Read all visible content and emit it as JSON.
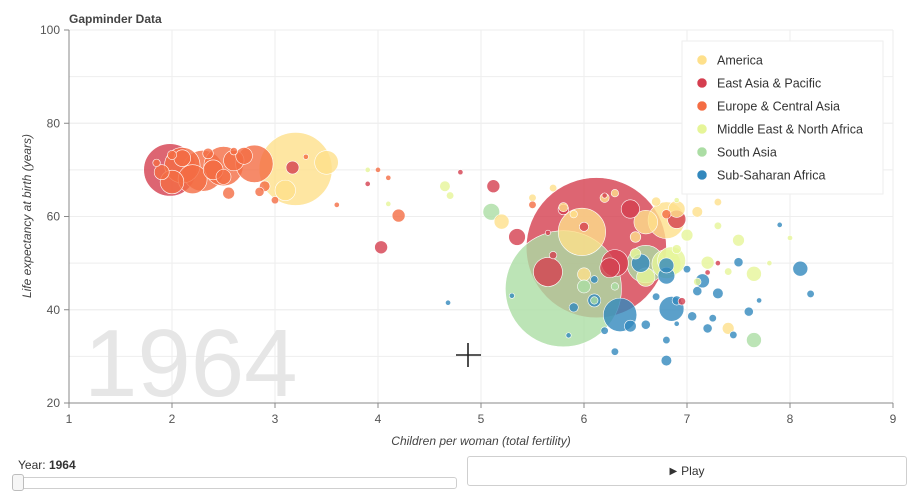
{
  "chart_data": {
    "type": "scatter",
    "title": "Gapminder Data",
    "year": "1964",
    "xlabel": "Children per woman (total fertility)",
    "ylabel": "Life expectancy at birth (years)",
    "xlim": [
      1,
      9
    ],
    "ylim": [
      20,
      100
    ],
    "x_ticks": [
      "1",
      "2",
      "3",
      "4",
      "5",
      "6",
      "7",
      "8",
      "9"
    ],
    "y_ticks": [
      "20",
      "40",
      "60",
      "80",
      "100"
    ],
    "legend_position": "top-right",
    "series": [
      {
        "name": "America",
        "color": "#fee08b",
        "points": [
          {
            "x": 3.2,
            "y": 70.2,
            "pop": 190
          },
          {
            "x": 5.98,
            "y": 56.7,
            "pop": 80
          },
          {
            "x": 6.8,
            "y": 59.2,
            "pop": 48
          },
          {
            "x": 6.6,
            "y": 58.8,
            "pop": 20
          },
          {
            "x": 3.5,
            "y": 71.6,
            "pop": 20
          },
          {
            "x": 3.1,
            "y": 65.6,
            "pop": 15
          },
          {
            "x": 6.9,
            "y": 61.6,
            "pop": 10
          },
          {
            "x": 5.2,
            "y": 58.9,
            "pop": 8
          },
          {
            "x": 6.0,
            "y": 47.6,
            "pop": 6
          },
          {
            "x": 7.4,
            "y": 36.0,
            "pop": 5
          },
          {
            "x": 6.5,
            "y": 55.6,
            "pop": 4
          },
          {
            "x": 7.1,
            "y": 61.0,
            "pop": 4
          },
          {
            "x": 6.2,
            "y": 64.0,
            "pop": 3
          },
          {
            "x": 5.8,
            "y": 62.0,
            "pop": 3
          },
          {
            "x": 6.7,
            "y": 63.2,
            "pop": 3
          },
          {
            "x": 5.7,
            "y": 66.1,
            "pop": 2
          },
          {
            "x": 6.3,
            "y": 65.0,
            "pop": 2
          },
          {
            "x": 7.3,
            "y": 63.1,
            "pop": 2
          },
          {
            "x": 5.5,
            "y": 64.0,
            "pop": 2
          },
          {
            "x": 5.9,
            "y": 60.5,
            "pop": 2
          }
        ]
      },
      {
        "name": "East Asia & Pacific",
        "color": "#d53e4f",
        "points": [
          {
            "x": 6.12,
            "y": 53.3,
            "pop": 700
          },
          {
            "x": 1.98,
            "y": 70.0,
            "pop": 98
          },
          {
            "x": 5.65,
            "y": 48.1,
            "pop": 30
          },
          {
            "x": 6.3,
            "y": 50.0,
            "pop": 26
          },
          {
            "x": 6.25,
            "y": 49.0,
            "pop": 14
          },
          {
            "x": 4.03,
            "y": 53.4,
            "pop": 6
          },
          {
            "x": 5.35,
            "y": 55.6,
            "pop": 10
          },
          {
            "x": 6.9,
            "y": 59.4,
            "pop": 12
          },
          {
            "x": 6.45,
            "y": 61.6,
            "pop": 12
          },
          {
            "x": 5.12,
            "y": 66.5,
            "pop": 6
          },
          {
            "x": 3.17,
            "y": 70.5,
            "pop": 6
          },
          {
            "x": 5.8,
            "y": 61.5,
            "pop": 4
          },
          {
            "x": 6.0,
            "y": 57.8,
            "pop": 3
          },
          {
            "x": 6.95,
            "y": 41.8,
            "pop": 2
          },
          {
            "x": 5.7,
            "y": 51.7,
            "pop": 2
          },
          {
            "x": 3.9,
            "y": 67.0,
            "pop": 1
          },
          {
            "x": 4.8,
            "y": 69.5,
            "pop": 1
          },
          {
            "x": 5.65,
            "y": 56.5,
            "pop": 1
          },
          {
            "x": 6.2,
            "y": 64.5,
            "pop": 1
          },
          {
            "x": 7.3,
            "y": 50.0,
            "pop": 1
          },
          {
            "x": 7.2,
            "y": 48.0,
            "pop": 1
          }
        ]
      },
      {
        "name": "Europe & Central Asia",
        "color": "#f46d43",
        "points": [
          {
            "x": 2.3,
            "y": 69.8,
            "pop": 60
          },
          {
            "x": 2.5,
            "y": 70.8,
            "pop": 55
          },
          {
            "x": 2.8,
            "y": 71.3,
            "pop": 50
          },
          {
            "x": 2.1,
            "y": 71.0,
            "pop": 45
          },
          {
            "x": 2.2,
            "y": 68.0,
            "pop": 30
          },
          {
            "x": 2.0,
            "y": 67.4,
            "pop": 20
          },
          {
            "x": 2.6,
            "y": 72.0,
            "pop": 15
          },
          {
            "x": 2.4,
            "y": 70.0,
            "pop": 14
          },
          {
            "x": 2.7,
            "y": 73.0,
            "pop": 10
          },
          {
            "x": 2.1,
            "y": 72.5,
            "pop": 10
          },
          {
            "x": 1.9,
            "y": 69.5,
            "pop": 8
          },
          {
            "x": 2.5,
            "y": 68.5,
            "pop": 8
          },
          {
            "x": 4.2,
            "y": 60.2,
            "pop": 6
          },
          {
            "x": 2.55,
            "y": 65.0,
            "pop": 5
          },
          {
            "x": 2.35,
            "y": 73.5,
            "pop": 4
          },
          {
            "x": 2.9,
            "y": 66.5,
            "pop": 4
          },
          {
            "x": 2.85,
            "y": 65.3,
            "pop": 3
          },
          {
            "x": 2.0,
            "y": 73.2,
            "pop": 3
          },
          {
            "x": 2.6,
            "y": 74.0,
            "pop": 2
          },
          {
            "x": 1.85,
            "y": 71.5,
            "pop": 2
          },
          {
            "x": 3.0,
            "y": 63.5,
            "pop": 2
          },
          {
            "x": 3.3,
            "y": 72.8,
            "pop": 1
          },
          {
            "x": 4.0,
            "y": 70.0,
            "pop": 1
          },
          {
            "x": 4.1,
            "y": 68.3,
            "pop": 1
          },
          {
            "x": 6.8,
            "y": 60.5,
            "pop": 3
          },
          {
            "x": 5.5,
            "y": 62.5,
            "pop": 2
          },
          {
            "x": 3.6,
            "y": 62.5,
            "pop": 1
          }
        ]
      },
      {
        "name": "Middle East & North Africa",
        "color": "#e6f598",
        "points": [
          {
            "x": 6.8,
            "y": 49.8,
            "pop": 30
          },
          {
            "x": 6.85,
            "y": 50.5,
            "pop": 28
          },
          {
            "x": 6.6,
            "y": 47.0,
            "pop": 12
          },
          {
            "x": 7.2,
            "y": 50.1,
            "pop": 6
          },
          {
            "x": 7.5,
            "y": 54.9,
            "pop": 5
          },
          {
            "x": 7.65,
            "y": 47.7,
            "pop": 8
          },
          {
            "x": 7.0,
            "y": 56.0,
            "pop": 5
          },
          {
            "x": 6.5,
            "y": 52.0,
            "pop": 4
          },
          {
            "x": 7.4,
            "y": 48.2,
            "pop": 2
          },
          {
            "x": 7.1,
            "y": 46.0,
            "pop": 2
          },
          {
            "x": 7.3,
            "y": 58.0,
            "pop": 2
          },
          {
            "x": 6.9,
            "y": 53.0,
            "pop": 3
          },
          {
            "x": 7.8,
            "y": 50.0,
            "pop": 1
          },
          {
            "x": 6.9,
            "y": 63.5,
            "pop": 1
          },
          {
            "x": 8.0,
            "y": 55.4,
            "pop": 1
          },
          {
            "x": 4.65,
            "y": 66.5,
            "pop": 4
          },
          {
            "x": 4.7,
            "y": 64.5,
            "pop": 2
          },
          {
            "x": 3.9,
            "y": 70.0,
            "pop": 1
          },
          {
            "x": 4.1,
            "y": 62.7,
            "pop": 1
          }
        ]
      },
      {
        "name": "South Asia",
        "color": "#abdda4",
        "points": [
          {
            "x": 5.8,
            "y": 44.5,
            "pop": 480
          },
          {
            "x": 6.6,
            "y": 49.8,
            "pop": 50
          },
          {
            "x": 5.1,
            "y": 61.0,
            "pop": 10
          },
          {
            "x": 7.65,
            "y": 33.5,
            "pop": 8
          },
          {
            "x": 6.0,
            "y": 45.0,
            "pop": 6
          },
          {
            "x": 6.1,
            "y": 42.0,
            "pop": 2
          },
          {
            "x": 6.3,
            "y": 45.0,
            "pop": 2
          }
        ]
      },
      {
        "name": "Sub-Saharan Africa",
        "color": "#3288bd",
        "points": [
          {
            "x": 6.35,
            "y": 38.9,
            "pop": 40
          },
          {
            "x": 6.85,
            "y": 40.2,
            "pop": 22
          },
          {
            "x": 6.55,
            "y": 50.0,
            "pop": 12
          },
          {
            "x": 6.8,
            "y": 47.3,
            "pop": 10
          },
          {
            "x": 8.1,
            "y": 48.8,
            "pop": 8
          },
          {
            "x": 6.8,
            "y": 49.5,
            "pop": 8
          },
          {
            "x": 7.15,
            "y": 46.2,
            "pop": 7
          },
          {
            "x": 6.1,
            "y": 42.0,
            "pop": 6
          },
          {
            "x": 6.45,
            "y": 36.5,
            "pop": 5
          },
          {
            "x": 6.8,
            "y": 29.1,
            "pop": 4
          },
          {
            "x": 7.3,
            "y": 43.5,
            "pop": 4
          },
          {
            "x": 7.5,
            "y": 50.2,
            "pop": 3
          },
          {
            "x": 6.6,
            "y": 36.8,
            "pop": 3
          },
          {
            "x": 7.05,
            "y": 38.6,
            "pop": 3
          },
          {
            "x": 7.2,
            "y": 36.0,
            "pop": 3
          },
          {
            "x": 7.6,
            "y": 39.6,
            "pop": 3
          },
          {
            "x": 7.1,
            "y": 44.0,
            "pop": 3
          },
          {
            "x": 6.9,
            "y": 42.0,
            "pop": 3
          },
          {
            "x": 8.2,
            "y": 43.4,
            "pop": 2
          },
          {
            "x": 5.9,
            "y": 40.5,
            "pop": 3
          },
          {
            "x": 6.2,
            "y": 35.5,
            "pop": 2
          },
          {
            "x": 6.7,
            "y": 42.8,
            "pop": 2
          },
          {
            "x": 7.25,
            "y": 38.2,
            "pop": 2
          },
          {
            "x": 7.0,
            "y": 48.7,
            "pop": 2
          },
          {
            "x": 6.3,
            "y": 31.0,
            "pop": 2
          },
          {
            "x": 7.45,
            "y": 34.6,
            "pop": 2
          },
          {
            "x": 6.1,
            "y": 46.5,
            "pop": 2
          },
          {
            "x": 6.8,
            "y": 33.5,
            "pop": 2
          },
          {
            "x": 4.68,
            "y": 41.5,
            "pop": 1
          },
          {
            "x": 5.3,
            "y": 43.0,
            "pop": 1
          },
          {
            "x": 7.9,
            "y": 58.2,
            "pop": 1
          },
          {
            "x": 5.85,
            "y": 34.5,
            "pop": 1
          },
          {
            "x": 7.7,
            "y": 42.0,
            "pop": 1
          },
          {
            "x": 6.9,
            "y": 37.0,
            "pop": 1
          }
        ]
      }
    ]
  },
  "controls": {
    "year_label": "Year:",
    "year_value": "1964",
    "slider_fraction": 0.0,
    "play_icon": "▶",
    "play_label": "Play"
  }
}
